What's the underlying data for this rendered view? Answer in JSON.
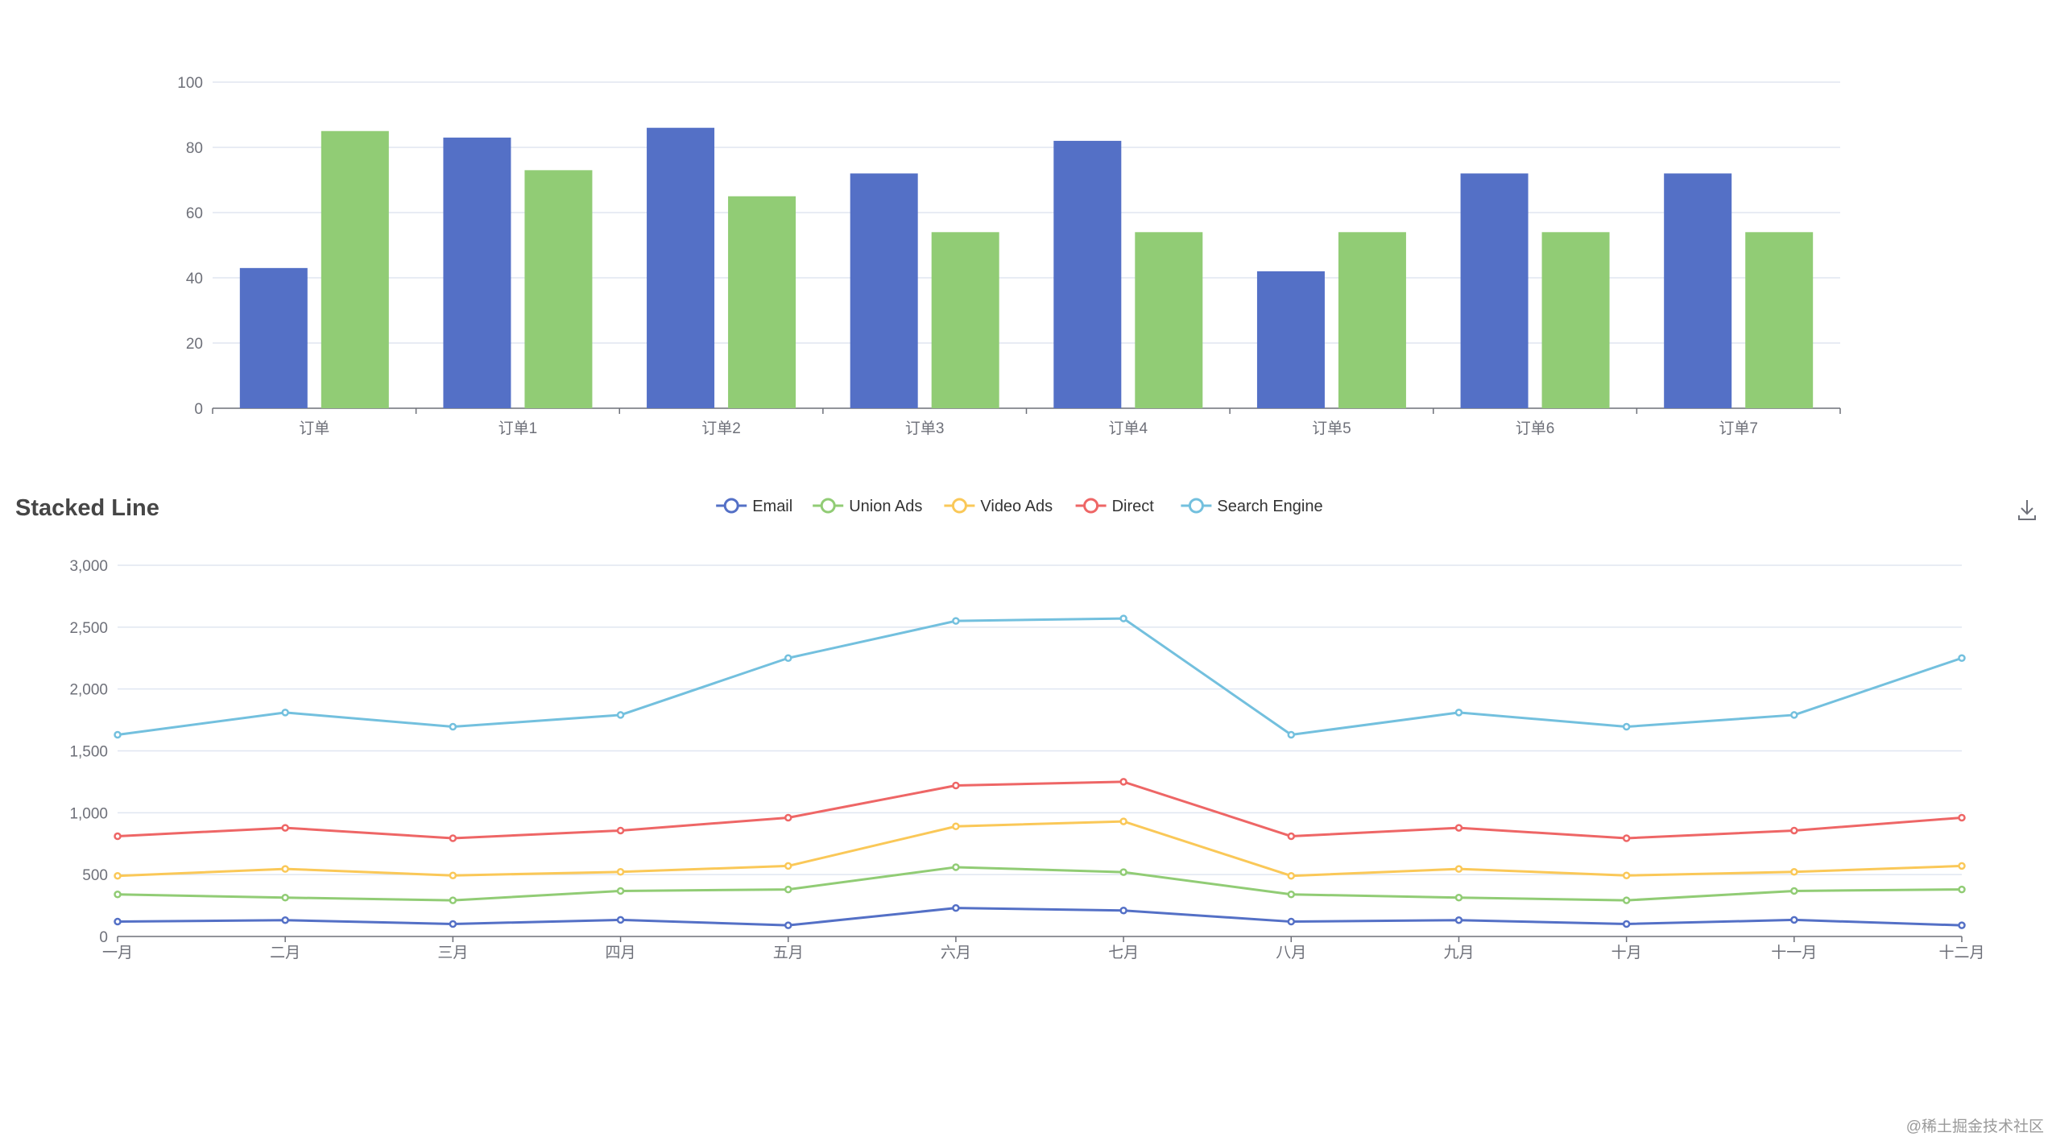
{
  "chart_data": [
    {
      "type": "bar",
      "title": "",
      "categories": [
        "订单",
        "订单1",
        "订单2",
        "订单3",
        "订单4",
        "订单5",
        "订单6",
        "订单7"
      ],
      "series": [
        {
          "color": "#5470c6",
          "values": [
            43,
            83,
            86,
            72,
            82,
            42,
            72,
            72
          ]
        },
        {
          "color": "#91cc75",
          "values": [
            85,
            73,
            65,
            54,
            54,
            54,
            54,
            54
          ]
        }
      ],
      "ylim": [
        0,
        100
      ],
      "yticks": [
        "0",
        "20",
        "40",
        "60",
        "80",
        "100"
      ],
      "grid": true
    },
    {
      "type": "line",
      "title": "Stacked Line",
      "stacked": true,
      "categories": [
        "一月",
        "二月",
        "三月",
        "四月",
        "五月",
        "六月",
        "七月",
        "八月",
        "九月",
        "十月",
        "十一月",
        "十二月"
      ],
      "series": [
        {
          "name": "Email",
          "color": "#5470c6",
          "values": [
            120,
            132,
            101,
            134,
            90,
            230,
            210,
            120,
            132,
            101,
            134,
            90
          ]
        },
        {
          "name": "Union Ads",
          "color": "#91cc75",
          "values": [
            220,
            182,
            191,
            234,
            290,
            330,
            310,
            220,
            182,
            191,
            234,
            290
          ]
        },
        {
          "name": "Video Ads",
          "color": "#fac858",
          "values": [
            150,
            232,
            201,
            154,
            190,
            330,
            410,
            150,
            232,
            201,
            154,
            190
          ]
        },
        {
          "name": "Direct",
          "color": "#ee6666",
          "values": [
            320,
            332,
            301,
            334,
            390,
            330,
            320,
            320,
            332,
            301,
            334,
            390
          ]
        },
        {
          "name": "Search Engine",
          "color": "#73c0de",
          "values": [
            820,
            932,
            901,
            934,
            1290,
            1330,
            1320,
            820,
            932,
            901,
            934,
            1290
          ]
        }
      ],
      "ylim": [
        0,
        3000
      ],
      "yticks": [
        "0",
        "500",
        "1,000",
        "1,500",
        "2,000",
        "2,500",
        "3,000"
      ],
      "legend_position": "top-center",
      "grid": true
    }
  ],
  "toolbox": {
    "icon": "download-icon"
  },
  "watermark": "@稀土掘金技术社区"
}
